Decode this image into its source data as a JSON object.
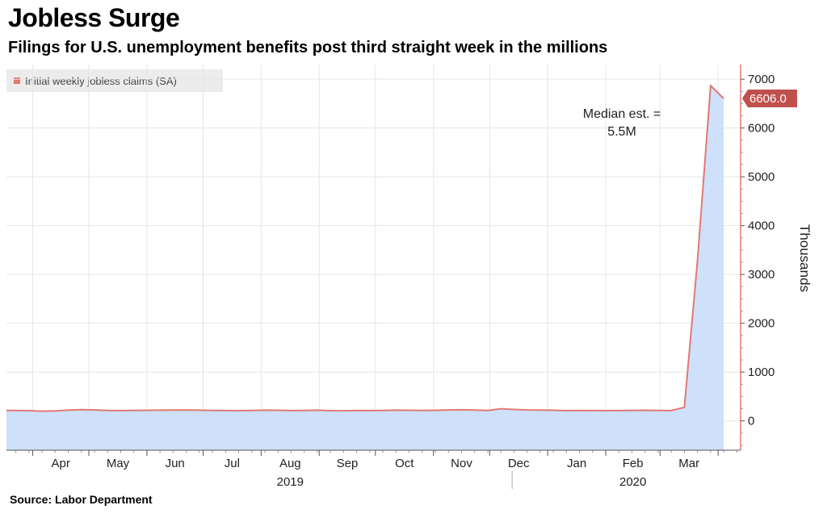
{
  "header": {
    "title": "Jobless Surge",
    "subtitle": "Filings for U.S. unemployment benefits post third straight week in the millions"
  },
  "footer": {
    "source": "Source: Labor Department"
  },
  "colors": {
    "line": "#e07a72",
    "area": "#cfe0fb",
    "last_value_bg": "#c0504d",
    "grid": "#e6e6e6"
  },
  "chart_data": {
    "type": "area",
    "title": "Jobless Surge",
    "subtitle": "Filings for U.S. unemployment benefits post third straight week in the millions",
    "series": [
      {
        "name": "Initial weekly jobless claims (SA)",
        "x": [
          "2019-03-23",
          "2019-03-30",
          "2019-04-06",
          "2019-04-13",
          "2019-04-20",
          "2019-04-27",
          "2019-05-04",
          "2019-05-11",
          "2019-05-18",
          "2019-05-25",
          "2019-06-01",
          "2019-06-08",
          "2019-06-15",
          "2019-06-22",
          "2019-06-29",
          "2019-07-06",
          "2019-07-13",
          "2019-07-20",
          "2019-07-27",
          "2019-08-03",
          "2019-08-10",
          "2019-08-17",
          "2019-08-24",
          "2019-08-31",
          "2019-09-07",
          "2019-09-14",
          "2019-09-21",
          "2019-09-28",
          "2019-10-05",
          "2019-10-12",
          "2019-10-19",
          "2019-10-26",
          "2019-11-02",
          "2019-11-09",
          "2019-11-16",
          "2019-11-23",
          "2019-11-30",
          "2019-12-07",
          "2019-12-14",
          "2019-12-21",
          "2019-12-28",
          "2020-01-04",
          "2020-01-11",
          "2020-01-18",
          "2020-01-25",
          "2020-02-01",
          "2020-02-08",
          "2020-02-15",
          "2020-02-22",
          "2020-02-29",
          "2020-03-07",
          "2020-03-14",
          "2020-03-21",
          "2020-03-28",
          "2020-04-04"
        ],
        "values": [
          215,
          210,
          200,
          205,
          220,
          230,
          225,
          215,
          212,
          215,
          218,
          220,
          222,
          225,
          220,
          215,
          212,
          210,
          215,
          220,
          218,
          212,
          215,
          220,
          210,
          208,
          215,
          212,
          215,
          220,
          218,
          215,
          218,
          225,
          228,
          222,
          215,
          250,
          235,
          225,
          222,
          218,
          210,
          215,
          212,
          210,
          212,
          215,
          218,
          215,
          212,
          280,
          3300,
          6867,
          6606
        ]
      }
    ],
    "xlabel": "",
    "ylabel": "Thousands",
    "ylim": [
      -600,
      7300
    ],
    "yticks": [
      0,
      1000,
      2000,
      3000,
      4000,
      5000,
      6000,
      7000
    ],
    "month_labels": [
      "Apr",
      "May",
      "Jun",
      "Jul",
      "Aug",
      "Sep",
      "Oct",
      "Nov",
      "Dec",
      "Jan",
      "Feb",
      "Mar"
    ],
    "year_labels": [
      "2019",
      "2020"
    ],
    "last_value_label": "6606.0",
    "annotation": [
      "Median est. =",
      "5.5M"
    ],
    "legend_position": "top-left",
    "y_axis_position": "right",
    "grid": true
  }
}
